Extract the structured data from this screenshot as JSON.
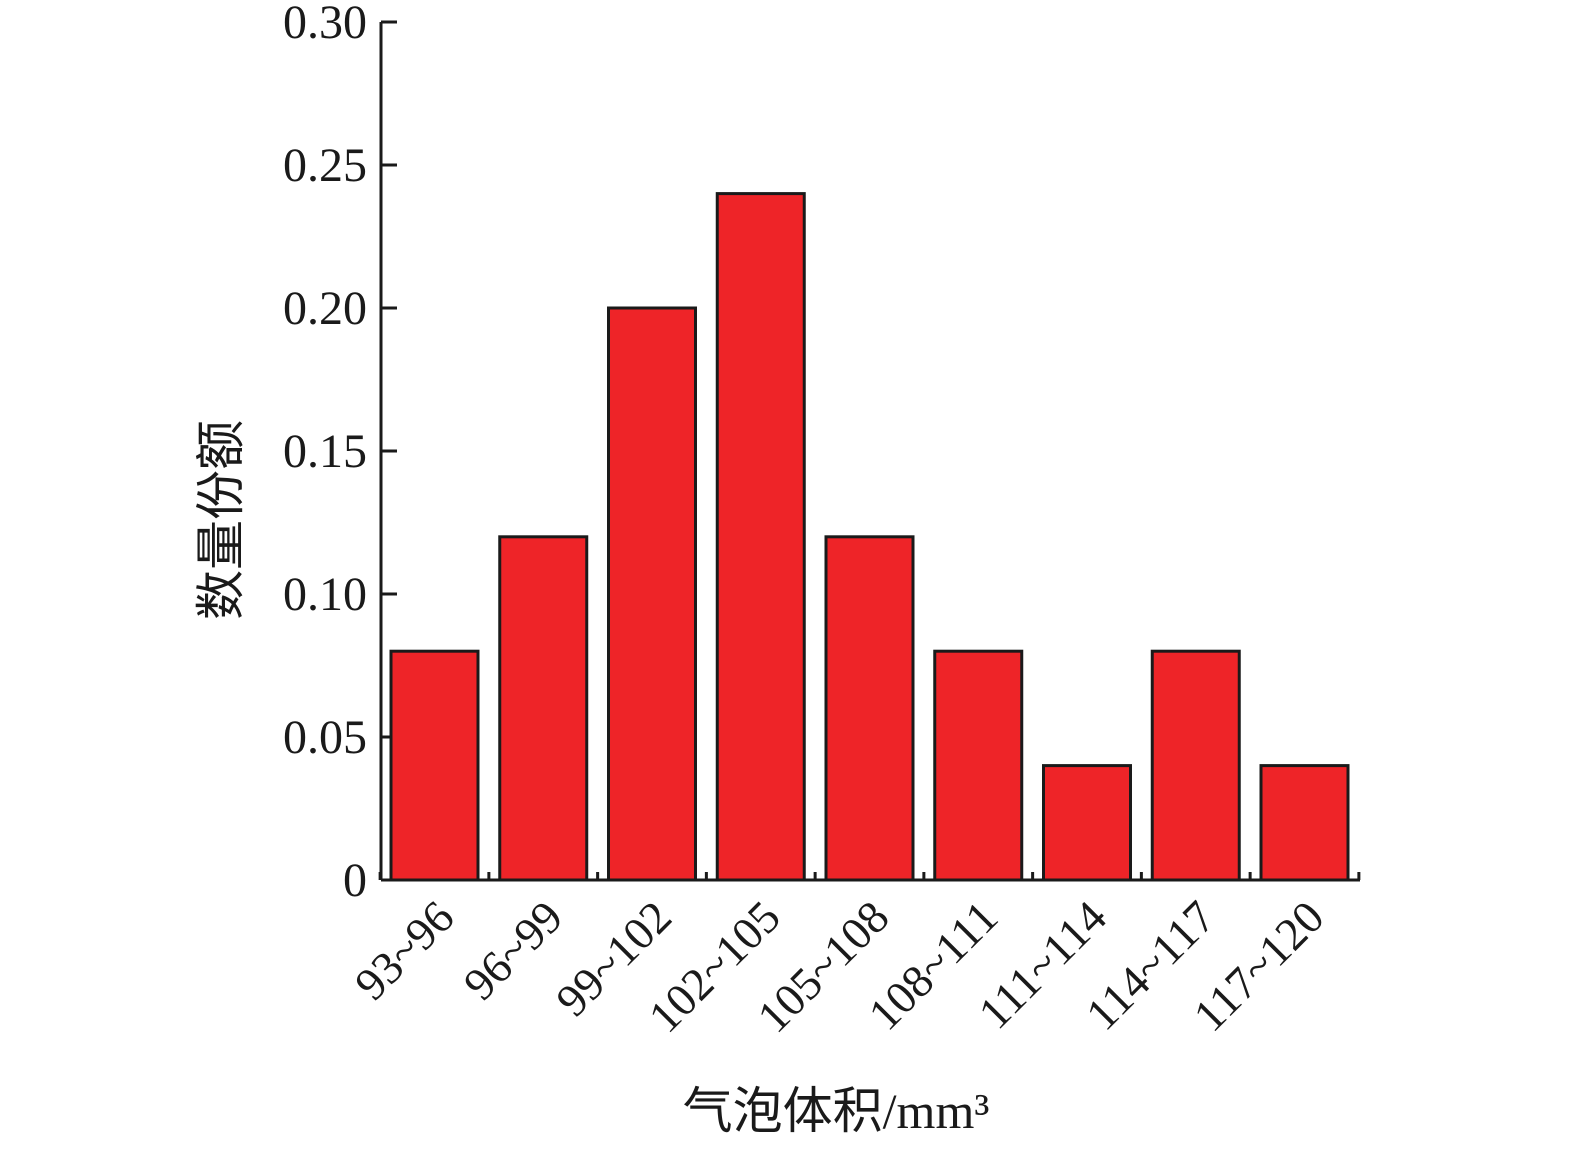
{
  "chart_data": {
    "type": "bar",
    "categories": [
      "93~96",
      "96~99",
      "99~102",
      "102~105",
      "105~108",
      "108~111",
      "111~114",
      "114~117",
      "117~120"
    ],
    "values": [
      0.08,
      0.12,
      0.2,
      0.24,
      0.12,
      0.08,
      0.04,
      0.08,
      0.04
    ],
    "xlabel": "气泡体积/mm³",
    "ylabel": "数量份额",
    "ylim": [
      0,
      0.3
    ],
    "yticks": [
      0,
      0.05,
      0.1,
      0.15,
      0.2,
      0.25,
      0.3
    ],
    "ytick_labels": [
      "0",
      "0.05",
      "0.10",
      "0.15",
      "0.20",
      "0.25",
      "0.30"
    ],
    "bar_color": "#ee2428",
    "grid": false,
    "legend": "none"
  }
}
